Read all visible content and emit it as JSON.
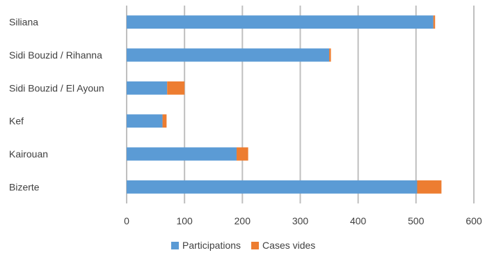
{
  "chart_data": {
    "type": "bar",
    "orientation": "horizontal",
    "stacked": true,
    "categories": [
      "Siliana",
      "Sidi Bouzid / Rihanna",
      "Sidi Bouzid / El Ayoun",
      "Kef",
      "Kairouan",
      "Bizerte"
    ],
    "series": [
      {
        "name": "Participations",
        "color": "#5b9bd5",
        "values": [
          530,
          350,
          70,
          62,
          190,
          502
        ]
      },
      {
        "name": "Cases vides",
        "color": "#ed7d31",
        "values": [
          3,
          3,
          30,
          7,
          20,
          42
        ]
      }
    ],
    "xlim": [
      0,
      600
    ],
    "xticks": [
      "0",
      "100",
      "200",
      "300",
      "400",
      "500",
      "600"
    ],
    "grid": "vertical",
    "legend": "bottom"
  }
}
